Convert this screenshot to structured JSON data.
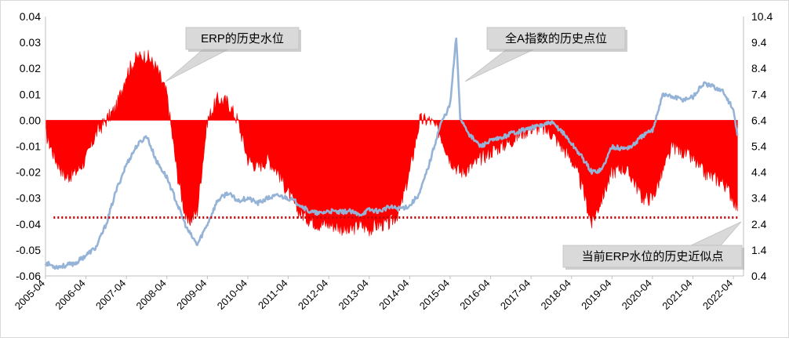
{
  "chart_data": {
    "type": "area",
    "categories": [
      "2005-04",
      "2006-04",
      "2007-04",
      "2008-04",
      "2009-04",
      "2010-04",
      "2011-04",
      "2012-04",
      "2013-04",
      "2014-04",
      "2015-04",
      "2016-04",
      "2017-04",
      "2018-04",
      "2019-04",
      "2020-04",
      "2021-04",
      "2022-04"
    ],
    "y_left": {
      "min": -0.06,
      "max": 0.04,
      "ticks": [
        "0.04",
        "0.03",
        "0.02",
        "0.01",
        "0.00",
        "-0.01",
        "-0.02",
        "-0.03",
        "-0.04",
        "-0.05",
        "-0.06"
      ]
    },
    "y_right": {
      "min": 0.4,
      "max": 10.4,
      "ticks": [
        "10.4",
        "9.4",
        "8.4",
        "7.4",
        "6.4",
        "5.4",
        "4.4",
        "3.4",
        "2.4",
        "1.4",
        "0.4"
      ]
    },
    "reference_line": {
      "value": -0.0375,
      "style": "dotted",
      "color": "#c00000"
    },
    "series": [
      {
        "axis": "left",
        "chart": "area",
        "color": "#ff0000",
        "x": [
          2005.25,
          2005.5,
          2005.75,
          2006.0,
          2006.25,
          2006.5,
          2006.75,
          2007.0,
          2007.25,
          2007.5,
          2007.75,
          2008.0,
          2008.25,
          2008.5,
          2008.75,
          2009.0,
          2009.25,
          2009.5,
          2009.75,
          2010.0,
          2010.25,
          2010.5,
          2010.75,
          2011.0,
          2011.25,
          2011.5,
          2011.75,
          2012.0,
          2012.25,
          2012.5,
          2012.75,
          2013.0,
          2013.25,
          2013.5,
          2013.75,
          2014.0,
          2014.25,
          2014.5,
          2014.75,
          2015.0,
          2015.25,
          2015.5,
          2015.75,
          2016.0,
          2016.25,
          2016.5,
          2016.75,
          2017.0,
          2017.25,
          2017.5,
          2017.75,
          2018.0,
          2018.25,
          2018.5,
          2018.75,
          2019.0,
          2019.25,
          2019.5,
          2019.75,
          2020.0,
          2020.25,
          2020.5,
          2020.75,
          2021.0,
          2021.25,
          2021.5,
          2021.75,
          2022.0,
          2022.25,
          2022.35
        ],
        "y": [
          -0.005,
          -0.015,
          -0.022,
          -0.02,
          -0.015,
          -0.005,
          0.0,
          0.005,
          0.018,
          0.024,
          0.025,
          0.02,
          0.01,
          -0.02,
          -0.04,
          -0.035,
          0.0,
          0.008,
          0.007,
          0.0,
          -0.015,
          -0.018,
          -0.015,
          -0.02,
          -0.028,
          -0.035,
          -0.038,
          -0.04,
          -0.04,
          -0.041,
          -0.043,
          -0.04,
          -0.042,
          -0.04,
          -0.04,
          -0.035,
          -0.02,
          0.0,
          0.0,
          -0.005,
          -0.015,
          -0.02,
          -0.018,
          -0.015,
          -0.012,
          -0.01,
          -0.008,
          -0.005,
          -0.003,
          -0.003,
          -0.005,
          -0.01,
          -0.015,
          -0.025,
          -0.04,
          -0.03,
          -0.02,
          -0.018,
          -0.022,
          -0.03,
          -0.03,
          -0.02,
          -0.01,
          -0.012,
          -0.015,
          -0.02,
          -0.022,
          -0.024,
          -0.03,
          -0.035
        ]
      },
      {
        "axis": "right",
        "chart": "line",
        "color": "#95b3d7",
        "x": [
          2005.25,
          2005.5,
          2005.75,
          2006.0,
          2006.25,
          2006.5,
          2006.75,
          2007.0,
          2007.25,
          2007.5,
          2007.75,
          2008.0,
          2008.25,
          2008.5,
          2008.75,
          2009.0,
          2009.25,
          2009.5,
          2009.75,
          2010.0,
          2010.25,
          2010.5,
          2010.75,
          2011.0,
          2011.25,
          2011.5,
          2011.75,
          2012.0,
          2012.25,
          2012.5,
          2012.75,
          2013.0,
          2013.25,
          2013.5,
          2013.75,
          2014.0,
          2014.25,
          2014.5,
          2014.75,
          2015.0,
          2015.25,
          2015.4,
          2015.5,
          2015.75,
          2016.0,
          2016.25,
          2016.5,
          2016.75,
          2017.0,
          2017.25,
          2017.5,
          2017.75,
          2018.0,
          2018.25,
          2018.5,
          2018.75,
          2019.0,
          2019.25,
          2019.5,
          2019.75,
          2020.0,
          2020.25,
          2020.5,
          2020.75,
          2021.0,
          2021.25,
          2021.5,
          2021.75,
          2022.0,
          2022.25,
          2022.35
        ],
        "y": [
          0.9,
          0.75,
          0.8,
          0.9,
          1.2,
          1.5,
          2.4,
          3.7,
          4.7,
          5.4,
          5.8,
          4.8,
          4.2,
          3.2,
          2.2,
          1.6,
          2.4,
          3.3,
          3.6,
          3.3,
          3.4,
          3.2,
          3.4,
          3.5,
          3.4,
          3.2,
          2.9,
          2.8,
          2.9,
          2.85,
          2.9,
          2.75,
          2.95,
          2.9,
          3.05,
          3.0,
          3.1,
          3.6,
          4.8,
          6.2,
          7.0,
          9.6,
          6.5,
          5.8,
          5.4,
          5.6,
          5.7,
          5.9,
          6.0,
          6.1,
          6.2,
          6.3,
          6.0,
          5.5,
          5.0,
          4.4,
          4.5,
          5.4,
          5.3,
          5.4,
          5.8,
          6.0,
          7.4,
          7.3,
          7.2,
          7.3,
          7.8,
          7.7,
          7.5,
          6.8,
          5.8
        ]
      }
    ],
    "annotations": [
      {
        "text": "ERP的历史水位",
        "x": 2007.9,
        "y": 0.02
      },
      {
        "text": "全A指数的历史点位",
        "x": 2015.6,
        "y": 0.003
      },
      {
        "text": "当前ERP水位的历史近似点",
        "x": 2022.35,
        "y": -0.0375
      }
    ]
  }
}
